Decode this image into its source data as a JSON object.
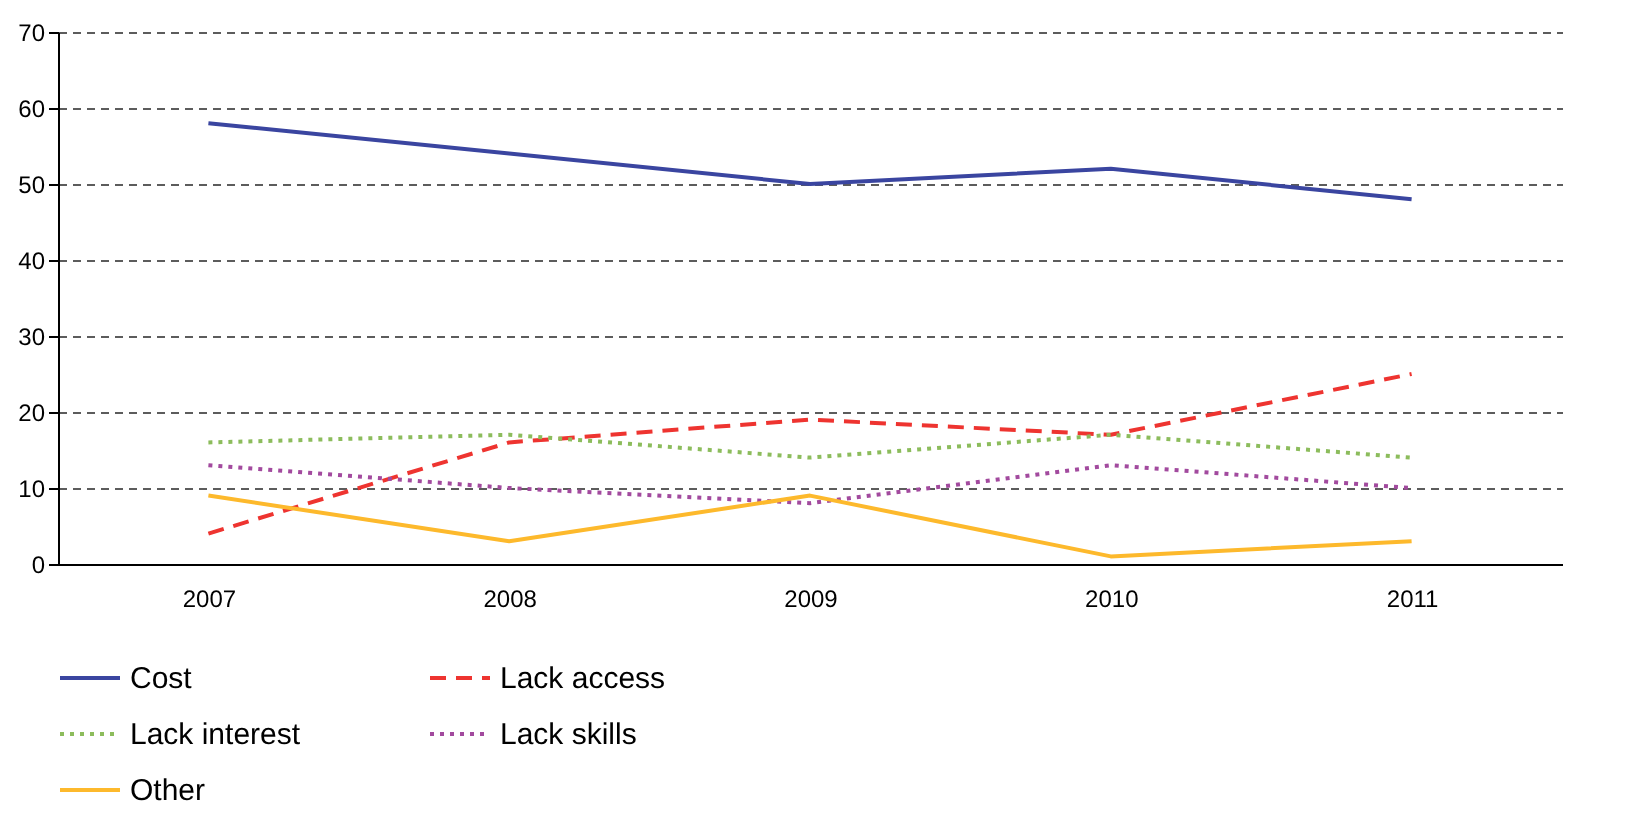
{
  "chart_data": {
    "type": "line",
    "categories": [
      "2007",
      "2008",
      "2009",
      "2010",
      "2011"
    ],
    "series": [
      {
        "name": "Cost",
        "color": "#3a45a0",
        "line_style": "solid",
        "values": [
          58,
          54,
          50,
          52,
          48
        ]
      },
      {
        "name": "Lack access",
        "color": "#ee3430",
        "line_style": "dashed",
        "values": [
          4,
          16,
          19,
          17,
          25
        ]
      },
      {
        "name": "Lack interest",
        "color": "#8cbc5c",
        "line_style": "dotted",
        "values": [
          16,
          17,
          14,
          17,
          14
        ]
      },
      {
        "name": "Lack skills",
        "color": "#a24a9e",
        "line_style": "dotted",
        "values": [
          13,
          10,
          8,
          13,
          10
        ]
      },
      {
        "name": "Other",
        "color": "#fdb92c",
        "line_style": "solid",
        "values": [
          9,
          3,
          9,
          1,
          3
        ]
      }
    ],
    "ylim": [
      0,
      70
    ],
    "yticks": [
      0,
      10,
      20,
      30,
      40,
      50,
      60,
      70
    ],
    "grid": "y",
    "legend": "bottom",
    "marker": "none"
  }
}
